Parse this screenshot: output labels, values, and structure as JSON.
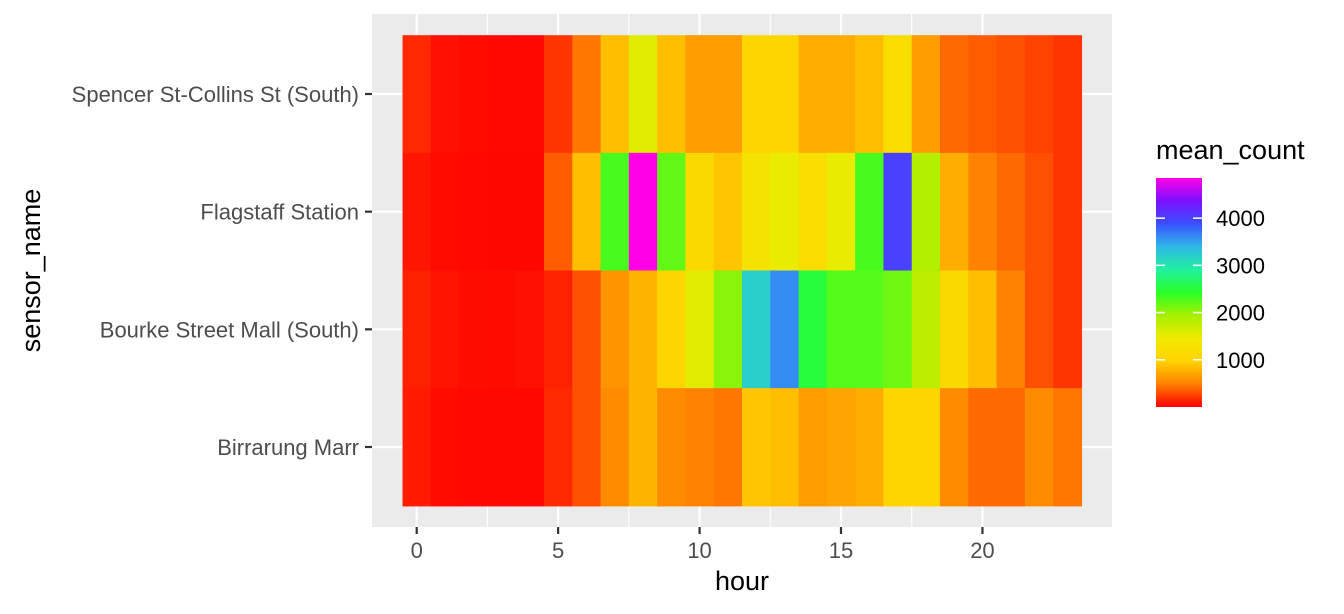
{
  "chart_data": {
    "type": "heatmap",
    "title": "",
    "xlabel": "hour",
    "ylabel": "sensor_name",
    "x": [
      0,
      1,
      2,
      3,
      4,
      5,
      6,
      7,
      8,
      9,
      10,
      11,
      12,
      13,
      14,
      15,
      16,
      17,
      18,
      19,
      20,
      21,
      22,
      23
    ],
    "xlim": [
      -0.5,
      23.5
    ],
    "x_ticks": [
      0,
      5,
      10,
      15,
      20
    ],
    "x_tick_labels": [
      "0",
      "5",
      "10",
      "15",
      "20"
    ],
    "categories": [
      "Birrarung Marr",
      "Bourke Street Mall (South)",
      "Flagstaff Station",
      "Spencer St-Collins St (South)"
    ],
    "rows": [
      {
        "sensor_name": "Spencer St-Collins St (South)",
        "values": [
          150,
          60,
          40,
          30,
          30,
          200,
          450,
          850,
          1550,
          850,
          650,
          650,
          1050,
          1050,
          750,
          750,
          850,
          1200,
          650,
          400,
          350,
          300,
          250,
          200
        ]
      },
      {
        "sensor_name": "Flagstaff Station",
        "values": [
          80,
          40,
          30,
          25,
          25,
          350,
          850,
          2300,
          4850,
          2200,
          1100,
          900,
          1300,
          1500,
          1200,
          1500,
          2300,
          4000,
          1850,
          750,
          500,
          400,
          300,
          200
        ]
      },
      {
        "sensor_name": "Bourke Street Mall (South)",
        "values": [
          120,
          70,
          50,
          45,
          60,
          130,
          300,
          600,
          800,
          1050,
          1550,
          2050,
          3200,
          3600,
          2500,
          2250,
          2250,
          2150,
          1800,
          1100,
          850,
          500,
          300,
          200
        ]
      },
      {
        "sensor_name": "Birrarung Marr",
        "values": [
          100,
          40,
          30,
          30,
          30,
          150,
          300,
          550,
          800,
          550,
          500,
          450,
          900,
          850,
          650,
          700,
          750,
          1050,
          1050,
          550,
          400,
          400,
          550,
          450
        ]
      }
    ],
    "legend": {
      "title": "mean_count",
      "min": 0,
      "max": 4850,
      "ticks": [
        1000,
        2000,
        3000,
        4000
      ],
      "tick_labels": [
        "1000",
        "2000",
        "3000",
        "4000"
      ],
      "placement": "right",
      "palette": [
        "#ff0000",
        "#ff8000",
        "#ffd200",
        "#f0ea00",
        "#a5f000",
        "#28ff28",
        "#20f0a0",
        "#30b8e8",
        "#3a50ff",
        "#7a10ff",
        "#ff00e6"
      ]
    },
    "grid": true,
    "panel_background": "#ebebeb",
    "grid_color": "#ffffff"
  }
}
